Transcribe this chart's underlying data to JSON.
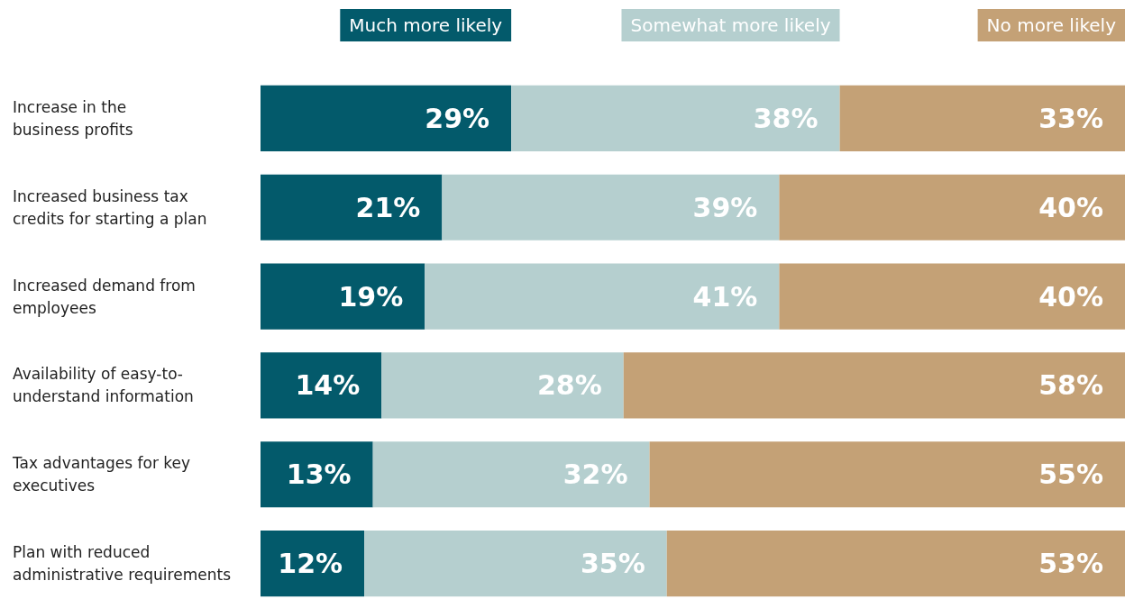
{
  "chart_data": {
    "type": "bar",
    "orientation": "horizontal",
    "stacked": true,
    "legend": "top",
    "categories": [
      "Increase in the\nbusiness profits",
      "Increased business tax\ncredits for starting a plan",
      "Increased demand from\nemployees",
      "Availability of easy-to-\nunderstand information",
      "Tax advantages for key\nexecutives",
      "Plan with reduced\nadministrative requirements"
    ],
    "series": [
      {
        "name": "Much more likely",
        "color": "#035a6b",
        "values": [
          29,
          21,
          19,
          14,
          13,
          12
        ],
        "value_labels": [
          "29%",
          "21%",
          "19%",
          "14%",
          "13%",
          "12%"
        ]
      },
      {
        "name": "Somewhat more likely",
        "color": "#b5cfcf",
        "values": [
          38,
          39,
          41,
          28,
          32,
          35
        ],
        "value_labels": [
          "38%",
          "39%",
          "41%",
          "28%",
          "32%",
          "35%"
        ]
      },
      {
        "name": "No more likely",
        "color": "#c4a176",
        "values": [
          33,
          40,
          40,
          58,
          55,
          53
        ],
        "value_labels": [
          "33%",
          "40%",
          "40%",
          "58%",
          "55%",
          "53%"
        ]
      }
    ]
  }
}
